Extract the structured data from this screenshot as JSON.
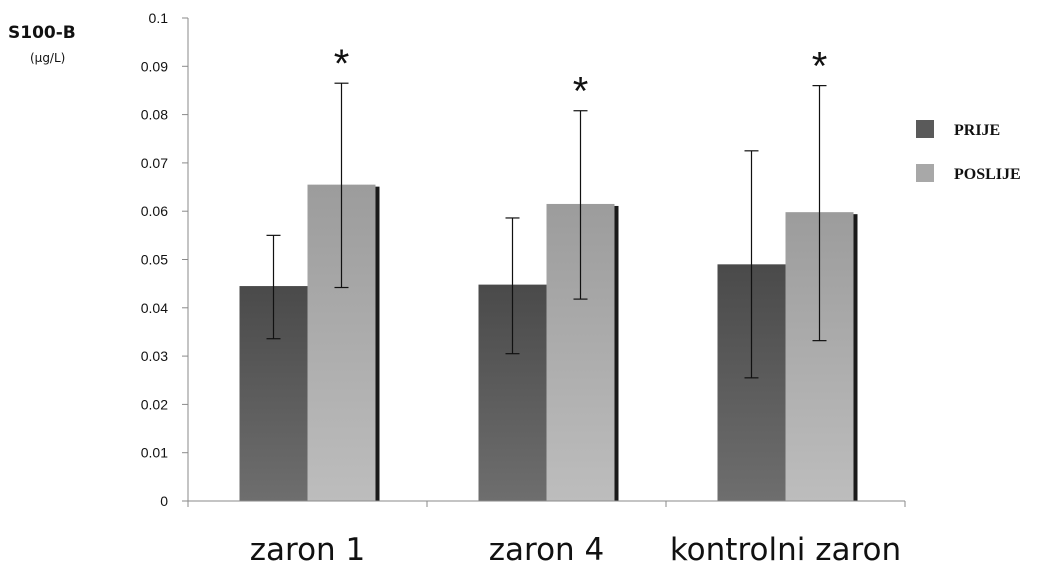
{
  "chart_data": {
    "type": "bar",
    "ylabel": "S100-B",
    "yunit": "(µg/L)",
    "ylim": [
      0,
      0.1
    ],
    "yticks": [
      "0",
      "0.01",
      "0.02",
      "0.03",
      "0.04",
      "0.05",
      "0.06",
      "0.07",
      "0.08",
      "0.09",
      "0.1"
    ],
    "categories": [
      "zaron 1",
      "zaron 4",
      "kontrolni zaron"
    ],
    "series": [
      {
        "name": "PRIJE",
        "color": "#5a5a5a",
        "values": [
          0.0445,
          0.0448,
          0.049
        ],
        "err_low": [
          0.0336,
          0.0305,
          0.0255
        ],
        "err_high": [
          0.055,
          0.0586,
          0.0725
        ]
      },
      {
        "name": "POSLIJE",
        "color": "#a8a8a8",
        "values": [
          0.0655,
          0.0615,
          0.0598
        ],
        "err_low": [
          0.0442,
          0.0418,
          0.0332
        ],
        "err_high": [
          0.0865,
          0.0808,
          0.086
        ]
      }
    ],
    "annotations": [
      "*",
      "*",
      "*"
    ],
    "legend_position": "right",
    "grid": false
  }
}
